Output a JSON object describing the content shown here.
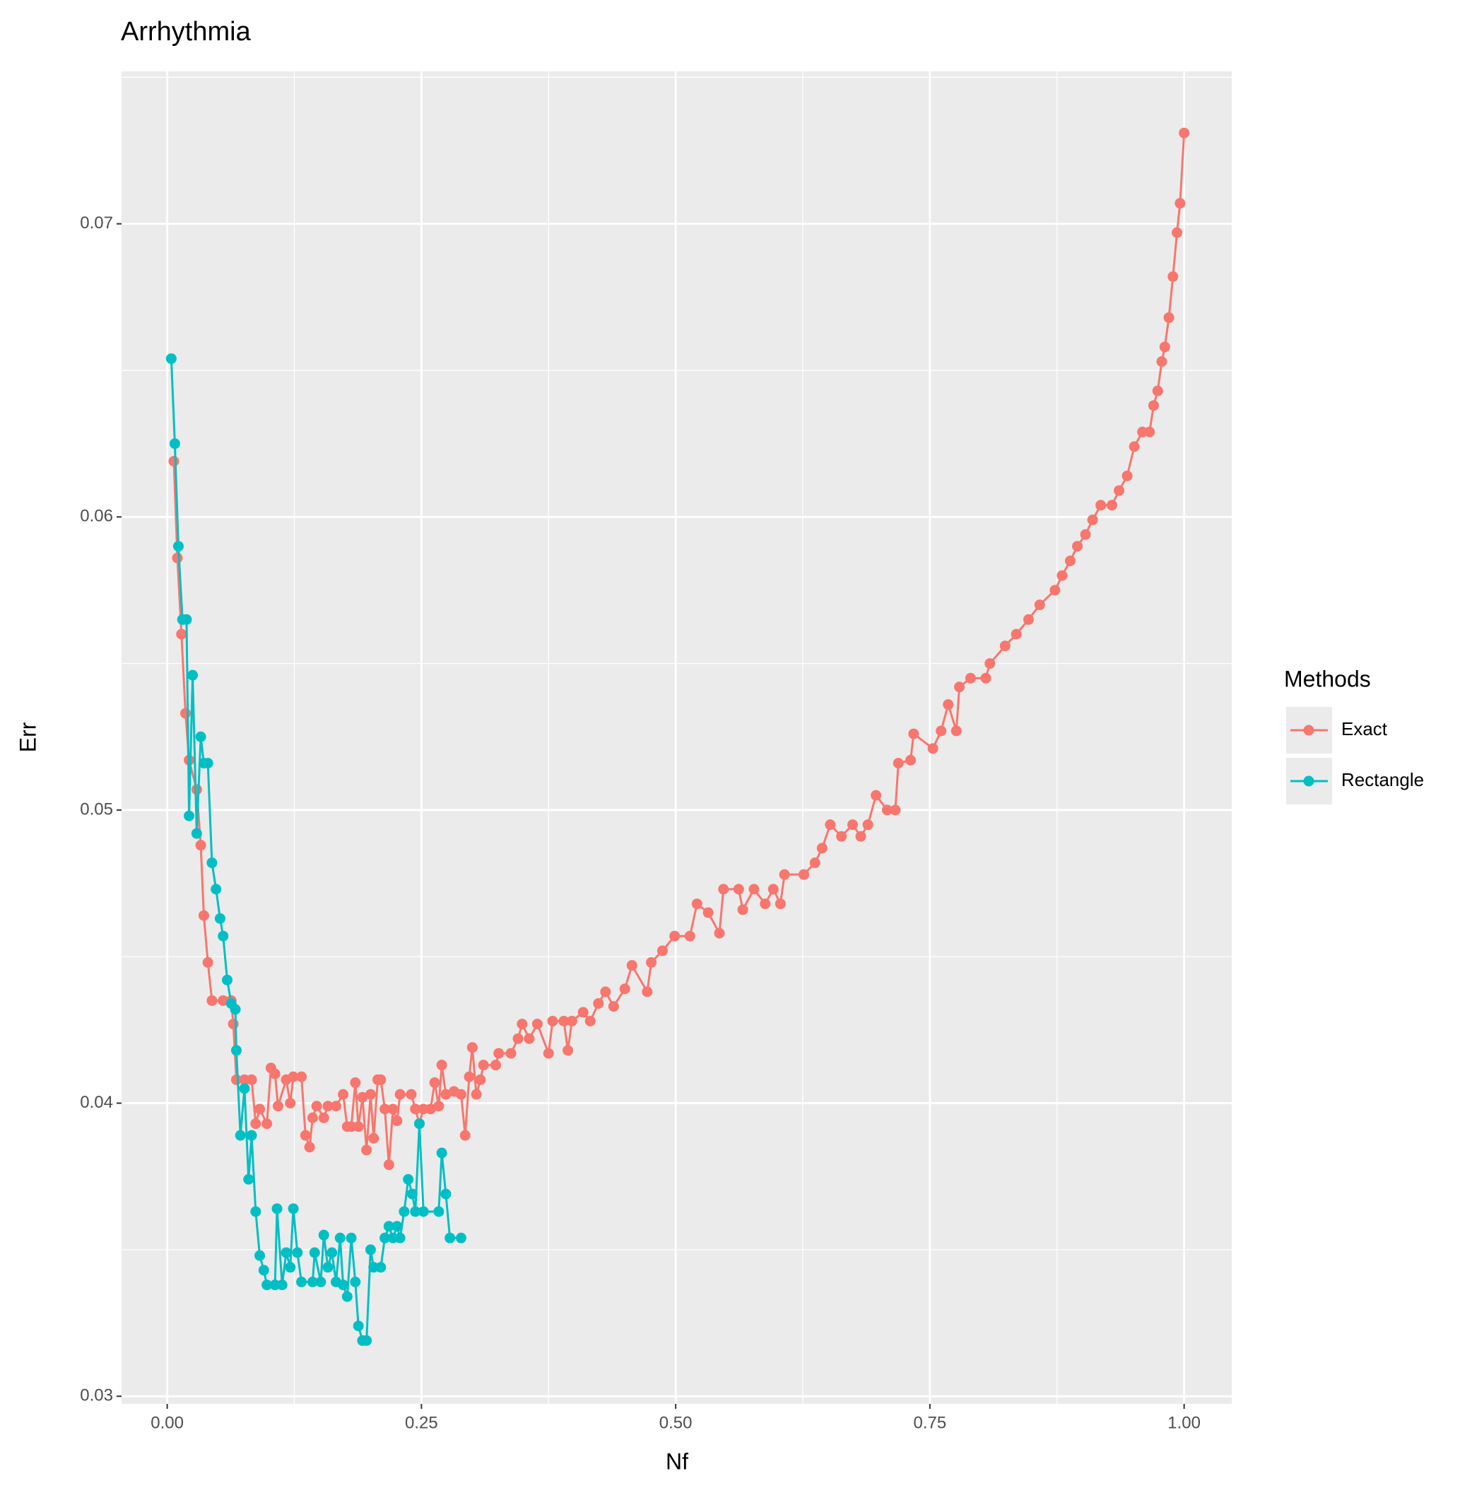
{
  "chart_data": {
    "type": "line",
    "title": "Arrhythmia",
    "x_label": "Nf",
    "y_label": "Err",
    "legend_title": "Methods",
    "legend_position": "right",
    "grid": true,
    "xlim": [
      -0.0449,
      1.0468
    ],
    "ylim": [
      0.02974,
      0.0752
    ],
    "xticks": [
      {
        "value": 0,
        "label": "0.00"
      },
      {
        "value": 0.25,
        "label": "0.25"
      },
      {
        "value": 0.5,
        "label": "0.50"
      },
      {
        "value": 0.75,
        "label": "0.75"
      },
      {
        "value": 1,
        "label": "1.00"
      }
    ],
    "yticks": [
      {
        "value": 0.03,
        "label": "0.03"
      },
      {
        "value": 0.04,
        "label": "0.04"
      },
      {
        "value": 0.05,
        "label": "0.05"
      },
      {
        "value": 0.06,
        "label": "0.06"
      },
      {
        "value": 0.07,
        "label": "0.07"
      }
    ],
    "x_minor_grid": [
      0.125,
      0.375,
      0.625,
      0.875
    ],
    "y_minor_grid": [
      0.035,
      0.045,
      0.055,
      0.065,
      0.075
    ],
    "series": [
      {
        "name": "Exact",
        "color": "#F8766D",
        "x": [
          0.0065,
          0.01,
          0.014,
          0.018,
          0.0215,
          0.029,
          0.033,
          0.036,
          0.04,
          0.044,
          0.055,
          0.063,
          0.065,
          0.068,
          0.076,
          0.083,
          0.087,
          0.091,
          0.098,
          0.102,
          0.106,
          0.109,
          0.117,
          0.121,
          0.124,
          0.132,
          0.136,
          0.14,
          0.143,
          0.147,
          0.154,
          0.158,
          0.166,
          0.173,
          0.177,
          0.181,
          0.185,
          0.188,
          0.192,
          0.196,
          0.2,
          0.203,
          0.207,
          0.21,
          0.214,
          0.218,
          0.222,
          0.226,
          0.229,
          0.24,
          0.244,
          0.248,
          0.252,
          0.259,
          0.263,
          0.267,
          0.27,
          0.274,
          0.282,
          0.289,
          0.293,
          0.297,
          0.3,
          0.304,
          0.308,
          0.311,
          0.323,
          0.326,
          0.338,
          0.345,
          0.349,
          0.356,
          0.364,
          0.375,
          0.379,
          0.39,
          0.394,
          0.398,
          0.409,
          0.416,
          0.424,
          0.431,
          0.439,
          0.45,
          0.457,
          0.472,
          0.476,
          0.487,
          0.499,
          0.514,
          0.521,
          0.532,
          0.543,
          0.547,
          0.562,
          0.566,
          0.577,
          0.588,
          0.596,
          0.603,
          0.607,
          0.626,
          0.637,
          0.644,
          0.652,
          0.663,
          0.674,
          0.682,
          0.689,
          0.697,
          0.708,
          0.716,
          0.719,
          0.731,
          0.734,
          0.753,
          0.761,
          0.768,
          0.776,
          0.779,
          0.79,
          0.805,
          0.809,
          0.824,
          0.835,
          0.847,
          0.858,
          0.873,
          0.88,
          0.888,
          0.895,
          0.903,
          0.91,
          0.918,
          0.929,
          0.936,
          0.944,
          0.951,
          0.959,
          0.966,
          0.97,
          0.974,
          0.978,
          0.981,
          0.985,
          0.989,
          0.993,
          0.996,
          1.0
        ],
        "values": [
          0.0619,
          0.0586,
          0.056,
          0.0533,
          0.0517,
          0.0507,
          0.0488,
          0.0464,
          0.0448,
          0.0435,
          0.0435,
          0.0435,
          0.0427,
          0.0408,
          0.0408,
          0.0408,
          0.0393,
          0.0398,
          0.0393,
          0.0412,
          0.041,
          0.0399,
          0.0408,
          0.04,
          0.0409,
          0.0409,
          0.0389,
          0.0385,
          0.0395,
          0.0399,
          0.0395,
          0.0399,
          0.0399,
          0.0403,
          0.0392,
          0.0392,
          0.0407,
          0.0392,
          0.0402,
          0.0384,
          0.0403,
          0.0388,
          0.0408,
          0.0408,
          0.0398,
          0.0379,
          0.0398,
          0.0394,
          0.0403,
          0.0403,
          0.0398,
          0.0393,
          0.0398,
          0.0398,
          0.0407,
          0.0399,
          0.0413,
          0.0403,
          0.0404,
          0.0403,
          0.0389,
          0.0409,
          0.0419,
          0.0403,
          0.0408,
          0.0413,
          0.0413,
          0.0417,
          0.0417,
          0.0422,
          0.0427,
          0.0422,
          0.0427,
          0.0417,
          0.0428,
          0.0428,
          0.0418,
          0.0428,
          0.0431,
          0.0428,
          0.0434,
          0.0438,
          0.0433,
          0.0439,
          0.0447,
          0.0438,
          0.0448,
          0.0452,
          0.0457,
          0.0457,
          0.0468,
          0.0465,
          0.0458,
          0.0473,
          0.0473,
          0.0466,
          0.0473,
          0.0468,
          0.0473,
          0.0468,
          0.0478,
          0.0478,
          0.0482,
          0.0487,
          0.0495,
          0.0491,
          0.0495,
          0.0491,
          0.0495,
          0.0505,
          0.05,
          0.05,
          0.0516,
          0.0517,
          0.0526,
          0.0521,
          0.0527,
          0.0536,
          0.0527,
          0.0542,
          0.0545,
          0.0545,
          0.055,
          0.0556,
          0.056,
          0.0565,
          0.057,
          0.0575,
          0.058,
          0.0585,
          0.059,
          0.0594,
          0.0599,
          0.0604,
          0.0604,
          0.0609,
          0.0614,
          0.0624,
          0.0629,
          0.0629,
          0.0638,
          0.0643,
          0.0653,
          0.0658,
          0.0668,
          0.0682,
          0.0697,
          0.0707,
          0.0731
        ]
      },
      {
        "name": "Rectangle",
        "color": "#00BFC4",
        "x": [
          0.004,
          0.0075,
          0.011,
          0.015,
          0.019,
          0.0215,
          0.025,
          0.029,
          0.033,
          0.036,
          0.04,
          0.044,
          0.048,
          0.052,
          0.055,
          0.059,
          0.063,
          0.067,
          0.068,
          0.072,
          0.076,
          0.08,
          0.083,
          0.087,
          0.091,
          0.095,
          0.098,
          0.106,
          0.108,
          0.113,
          0.117,
          0.121,
          0.124,
          0.128,
          0.132,
          0.143,
          0.145,
          0.151,
          0.154,
          0.158,
          0.162,
          0.166,
          0.17,
          0.173,
          0.177,
          0.181,
          0.185,
          0.188,
          0.192,
          0.196,
          0.2,
          0.203,
          0.21,
          0.214,
          0.218,
          0.222,
          0.226,
          0.229,
          0.233,
          0.237,
          0.241,
          0.244,
          0.248,
          0.252,
          0.267,
          0.27,
          0.274,
          0.278,
          0.289
        ],
        "values": [
          0.0654,
          0.0625,
          0.059,
          0.0565,
          0.0565,
          0.0498,
          0.0546,
          0.0492,
          0.0525,
          0.0516,
          0.0516,
          0.0482,
          0.0473,
          0.0463,
          0.0457,
          0.0442,
          0.0434,
          0.0432,
          0.0418,
          0.0389,
          0.0405,
          0.0374,
          0.0389,
          0.0363,
          0.0348,
          0.0343,
          0.0338,
          0.0338,
          0.0364,
          0.0338,
          0.0349,
          0.0344,
          0.0364,
          0.0349,
          0.0339,
          0.0339,
          0.0349,
          0.0339,
          0.0355,
          0.0344,
          0.0349,
          0.0339,
          0.0354,
          0.0338,
          0.0334,
          0.0354,
          0.0339,
          0.0324,
          0.0319,
          0.0319,
          0.035,
          0.0344,
          0.0344,
          0.0354,
          0.0358,
          0.0354,
          0.0358,
          0.0354,
          0.0363,
          0.0374,
          0.0369,
          0.0363,
          0.0393,
          0.0363,
          0.0363,
          0.0383,
          0.0369,
          0.0354,
          0.0354
        ]
      }
    ]
  }
}
